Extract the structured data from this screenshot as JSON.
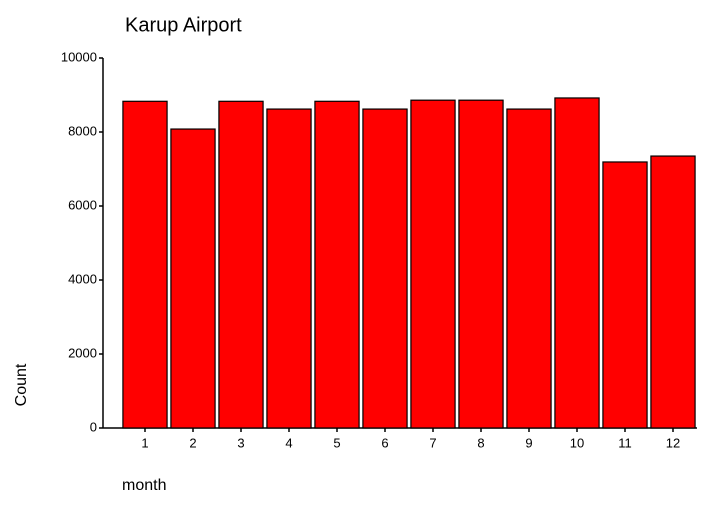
{
  "chart_data": {
    "type": "bar",
    "title": "Karup Airport",
    "x_label": "month",
    "y_label": "Count",
    "categories": [
      "1",
      "2",
      "3",
      "4",
      "5",
      "6",
      "7",
      "8",
      "9",
      "10",
      "11",
      "12"
    ],
    "values": [
      8830,
      8080,
      8830,
      8620,
      8830,
      8620,
      8860,
      8860,
      8620,
      8920,
      7190,
      7350
    ],
    "color": "#ff0000",
    "ylim": [
      0,
      10000
    ],
    "yticks": [
      0,
      2000,
      4000,
      6000,
      8000,
      10000
    ],
    "grid": false
  }
}
